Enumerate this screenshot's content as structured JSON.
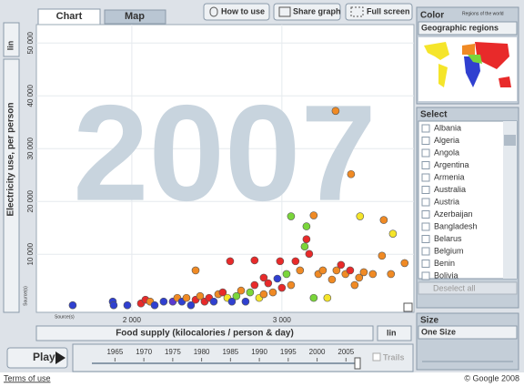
{
  "tabs": [
    "Chart",
    "Map"
  ],
  "buttons": [
    "How to use",
    "Share graph",
    "Full screen"
  ],
  "chart_data": {
    "type": "scatter",
    "year": 2007,
    "x_label": "Food supply (kilocalories / person & day)",
    "y_label": "Electricity use, per person",
    "x_scale": "lin",
    "y_scale": "lin",
    "source_label": "Source(s)",
    "xlim": [
      1364,
      3880
    ],
    "ylim": [
      -1000,
      53500
    ],
    "xticks": [
      {
        "value": 2000,
        "label": "2 000"
      },
      {
        "value": 3000,
        "label": "3 000"
      }
    ],
    "yticks": [
      {
        "value": 10000,
        "label": "10 000"
      },
      {
        "value": 20000,
        "label": "20 000"
      },
      {
        "value": 30000,
        "label": "30 000"
      },
      {
        "value": 40000,
        "label": "40 000"
      },
      {
        "value": 50000,
        "label": "50 000"
      }
    ],
    "grid": true,
    "x": [
      1606,
      1873,
      1879,
      1970,
      2061,
      2091,
      2122,
      2152,
      2212,
      2273,
      2303,
      2334,
      2364,
      2394,
      2425,
      2455,
      2485,
      2515,
      2546,
      2576,
      2606,
      2637,
      2667,
      2697,
      2728,
      2758,
      2788,
      2818,
      2849,
      2879,
      2909,
      2940,
      2970,
      3000,
      3031,
      3061,
      3091,
      3121,
      3152,
      3182,
      3212,
      3243,
      3273,
      3303,
      3334,
      3364,
      3394,
      3424,
      3455,
      3485,
      3515,
      3546,
      3606,
      3667,
      3727,
      3818,
      2425,
      2655,
      2818,
      3061,
      3164,
      3212,
      3521,
      3679,
      3740,
      3461,
      3358,
      2988,
      3164,
      2879
    ],
    "y": [
      350,
      1040,
      350,
      350,
      690,
      1390,
      1040,
      350,
      1040,
      1040,
      1740,
      1040,
      1740,
      350,
      1390,
      2080,
      1040,
      1740,
      1040,
      2430,
      2780,
      1740,
      1040,
      2080,
      3120,
      1040,
      2780,
      4170,
      1740,
      2430,
      4510,
      2780,
      5380,
      3650,
      6250,
      4170,
      8680,
      6940,
      11460,
      10070,
      1740,
      6250,
      6940,
      1740,
      5210,
      6940,
      7990,
      6250,
      6940,
      4170,
      5560,
      6600,
      6250,
      9720,
      6250,
      8330,
      6940,
      8680,
      8850,
      17190,
      15280,
      17360,
      17190,
      16490,
      13890,
      25170,
      37150,
      8680,
      12850,
      5560
    ],
    "colors": [
      "#3040d0",
      "#3040d0",
      "#3040d0",
      "#3040d0",
      "#e82a2a",
      "#e82a2a",
      "#f08a24",
      "#3040d0",
      "#3040d0",
      "#5a3ad0",
      "#f08a24",
      "#3040d0",
      "#f08a24",
      "#3040d0",
      "#e82a2a",
      "#f08a24",
      "#e82a2a",
      "#e82a2a",
      "#3040d0",
      "#f08a24",
      "#e82a2a",
      "#f5e52a",
      "#3040d0",
      "#7ad63a",
      "#f08a24",
      "#3040d0",
      "#7ad63a",
      "#e82a2a",
      "#f5e52a",
      "#f08a24",
      "#e82a2a",
      "#f08a24",
      "#3040d0",
      "#e82a2a",
      "#7ad63a",
      "#f08a24",
      "#e82a2a",
      "#f08a24",
      "#7ad63a",
      "#e82a2a",
      "#7ad63a",
      "#f08a24",
      "#f08a24",
      "#f5e52a",
      "#f08a24",
      "#f08a24",
      "#e82a2a",
      "#f08a24",
      "#e82a2a",
      "#f08a24",
      "#f08a24",
      "#f08a24",
      "#f08a24",
      "#f08a24",
      "#f08a24",
      "#f08a24",
      "#f08a24",
      "#e82a2a",
      "#e82a2a",
      "#7ad63a",
      "#7ad63a",
      "#f08a24",
      "#f5e52a",
      "#f08a24",
      "#f5e52a",
      "#f08a24",
      "#f08a24",
      "#e82a2a",
      "#e82a2a",
      "#e82a2a"
    ]
  },
  "color_panel": {
    "title": "Color",
    "map_title": "Regions of the world",
    "selected": "Geographic regions"
  },
  "select_panel": {
    "title": "Select",
    "items": [
      "Albania",
      "Algeria",
      "Angola",
      "Argentina",
      "Armenia",
      "Australia",
      "Austria",
      "Azerbaijan",
      "Bangladesh",
      "Belarus",
      "Belgium",
      "Benin",
      "Bolivia"
    ],
    "deselect": "Deselect all"
  },
  "size_panel": {
    "title": "Size",
    "selected": "One Size"
  },
  "player": {
    "play": "Play",
    "lim": [
      1961,
      2007
    ],
    "ticks": [
      1965,
      1970,
      1975,
      1980,
      1985,
      1990,
      1995,
      2000,
      2005
    ],
    "trails": "Trails"
  },
  "footer": {
    "terms": "Terms of use",
    "copyright": "© Google 2008"
  }
}
